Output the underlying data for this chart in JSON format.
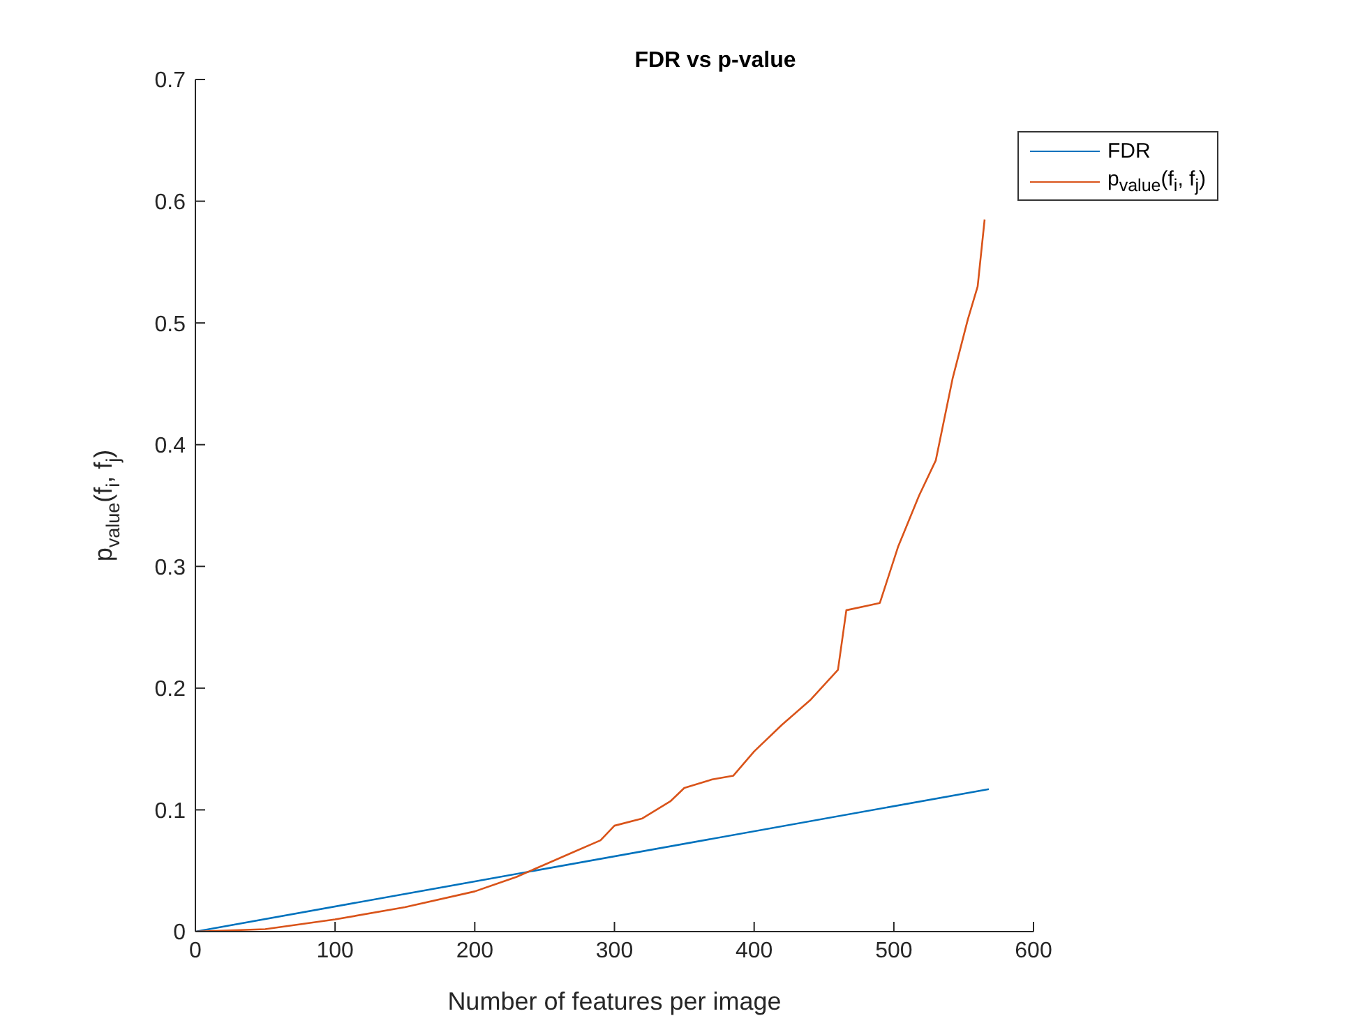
{
  "chart_data": {
    "type": "line",
    "title": "FDR vs p-value",
    "xlabel": "Number of features per image",
    "ylabel": "p$_{value}$(f$_{i}$, f$_{j}$)",
    "xlim": [
      0,
      600
    ],
    "xticks": [
      0,
      100,
      200,
      300,
      400,
      500,
      600
    ],
    "ylim": [
      0,
      0.7
    ],
    "yticks": [
      0,
      0.1,
      0.2,
      0.3,
      0.4,
      0.5,
      0.6,
      0.7
    ],
    "grid": false,
    "legend": "top right",
    "marker": "none",
    "line_style": "solid",
    "series": [
      {
        "name": "FDR",
        "color": "#0072bd",
        "x": [
          0,
          568
        ],
        "values": [
          0,
          0.117
        ]
      },
      {
        "name": "p$_{value}$(f$_{i}$, f$_{j}$)",
        "color": "#d95319",
        "x": [
          0,
          50,
          100,
          150,
          200,
          230,
          250,
          270,
          290,
          300,
          320,
          340,
          350,
          370,
          385,
          400,
          420,
          440,
          460,
          466,
          482,
          490,
          503,
          518,
          530,
          542,
          553,
          560,
          565
        ],
        "values": [
          0,
          0.002,
          0.01,
          0.02,
          0.033,
          0.045,
          0.055,
          0.065,
          0.075,
          0.087,
          0.093,
          0.107,
          0.118,
          0.125,
          0.128,
          0.148,
          0.17,
          0.19,
          0.215,
          0.264,
          0.268,
          0.27,
          0.316,
          0.358,
          0.387,
          0.454,
          0.503,
          0.53,
          0.585
        ]
      }
    ]
  }
}
